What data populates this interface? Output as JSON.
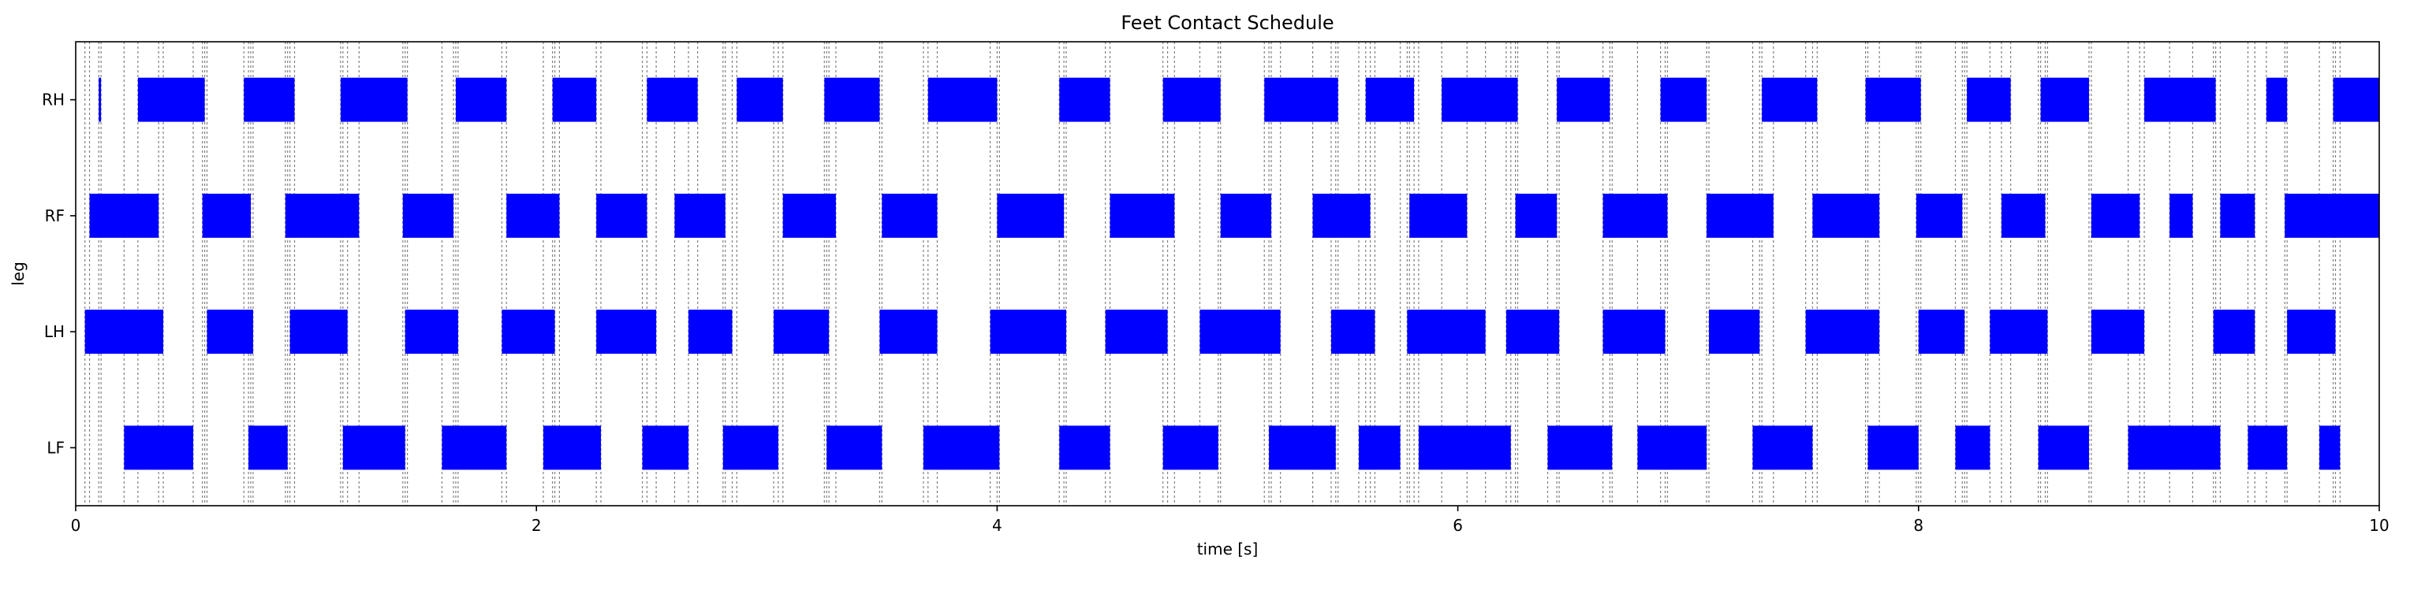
{
  "chart_data": {
    "type": "gantt",
    "title": "Feet Contact Schedule",
    "xlabel": "time [s]",
    "ylabel": "leg",
    "xlim": [
      0,
      10
    ],
    "xticks": [
      0,
      2,
      4,
      6,
      8,
      10
    ],
    "xtick_labels": [
      "0",
      "2",
      "4",
      "6",
      "8",
      "10"
    ],
    "categories": [
      "RH",
      "RF",
      "LH",
      "LF"
    ],
    "bar_color": "#0000ff",
    "grid_line_color": "#808080",
    "series": [
      {
        "leg": "RH",
        "intervals": [
          [
            0.1,
            0.11
          ],
          [
            0.27,
            0.56
          ],
          [
            0.73,
            0.95
          ],
          [
            1.15,
            1.44
          ],
          [
            1.65,
            1.87
          ],
          [
            2.07,
            2.26
          ],
          [
            2.48,
            2.7
          ],
          [
            2.87,
            3.07
          ],
          [
            3.25,
            3.49
          ],
          [
            3.7,
            4.0
          ],
          [
            4.27,
            4.49
          ],
          [
            4.72,
            4.97
          ],
          [
            5.16,
            5.48
          ],
          [
            5.6,
            5.81
          ],
          [
            5.93,
            6.26
          ],
          [
            6.43,
            6.66
          ],
          [
            6.88,
            7.08
          ],
          [
            7.32,
            7.56
          ],
          [
            7.77,
            8.01
          ],
          [
            8.21,
            8.4
          ],
          [
            8.53,
            8.74
          ],
          [
            8.98,
            9.29
          ],
          [
            9.51,
            9.6
          ],
          [
            9.8,
            10.0
          ]
        ]
      },
      {
        "leg": "RF",
        "intervals": [
          [
            0.06,
            0.36
          ],
          [
            0.55,
            0.76
          ],
          [
            0.91,
            1.23
          ],
          [
            1.42,
            1.64
          ],
          [
            1.87,
            2.1
          ],
          [
            2.26,
            2.48
          ],
          [
            2.6,
            2.82
          ],
          [
            3.07,
            3.3
          ],
          [
            3.5,
            3.74
          ],
          [
            4.0,
            4.29
          ],
          [
            4.49,
            4.77
          ],
          [
            4.97,
            5.19
          ],
          [
            5.37,
            5.62
          ],
          [
            5.79,
            6.04
          ],
          [
            6.25,
            6.43
          ],
          [
            6.63,
            6.91
          ],
          [
            7.08,
            7.37
          ],
          [
            7.54,
            7.83
          ],
          [
            7.99,
            8.19
          ],
          [
            8.36,
            8.55
          ],
          [
            8.75,
            8.96
          ],
          [
            9.09,
            9.19
          ],
          [
            9.31,
            9.46
          ],
          [
            9.59,
            10.0
          ]
        ]
      },
      {
        "leg": "LH",
        "intervals": [
          [
            0.04,
            0.38
          ],
          [
            0.57,
            0.77
          ],
          [
            0.93,
            1.18
          ],
          [
            1.43,
            1.66
          ],
          [
            1.85,
            2.08
          ],
          [
            2.26,
            2.52
          ],
          [
            2.66,
            2.85
          ],
          [
            3.03,
            3.27
          ],
          [
            3.49,
            3.74
          ],
          [
            3.97,
            4.3
          ],
          [
            4.47,
            4.74
          ],
          [
            4.88,
            5.23
          ],
          [
            5.45,
            5.64
          ],
          [
            5.78,
            6.12
          ],
          [
            6.21,
            6.44
          ],
          [
            6.63,
            6.9
          ],
          [
            7.09,
            7.31
          ],
          [
            7.51,
            7.83
          ],
          [
            8.0,
            8.2
          ],
          [
            8.31,
            8.56
          ],
          [
            8.75,
            8.98
          ],
          [
            9.28,
            9.46
          ],
          [
            9.6,
            9.81
          ]
        ]
      },
      {
        "leg": "LF",
        "intervals": [
          [
            0.21,
            0.51
          ],
          [
            0.75,
            0.92
          ],
          [
            1.16,
            1.43
          ],
          [
            1.59,
            1.87
          ],
          [
            2.03,
            2.28
          ],
          [
            2.46,
            2.66
          ],
          [
            2.81,
            3.05
          ],
          [
            3.26,
            3.5
          ],
          [
            3.68,
            4.01
          ],
          [
            4.27,
            4.49
          ],
          [
            4.72,
            4.96
          ],
          [
            5.18,
            5.47
          ],
          [
            5.57,
            5.75
          ],
          [
            5.83,
            6.23
          ],
          [
            6.39,
            6.67
          ],
          [
            6.78,
            7.08
          ],
          [
            7.28,
            7.54
          ],
          [
            7.78,
            8.0
          ],
          [
            8.16,
            8.31
          ],
          [
            8.52,
            8.74
          ],
          [
            8.91,
            9.31
          ],
          [
            9.43,
            9.6
          ],
          [
            9.74,
            9.83
          ]
        ]
      }
    ],
    "grid": false,
    "legend": "none"
  }
}
